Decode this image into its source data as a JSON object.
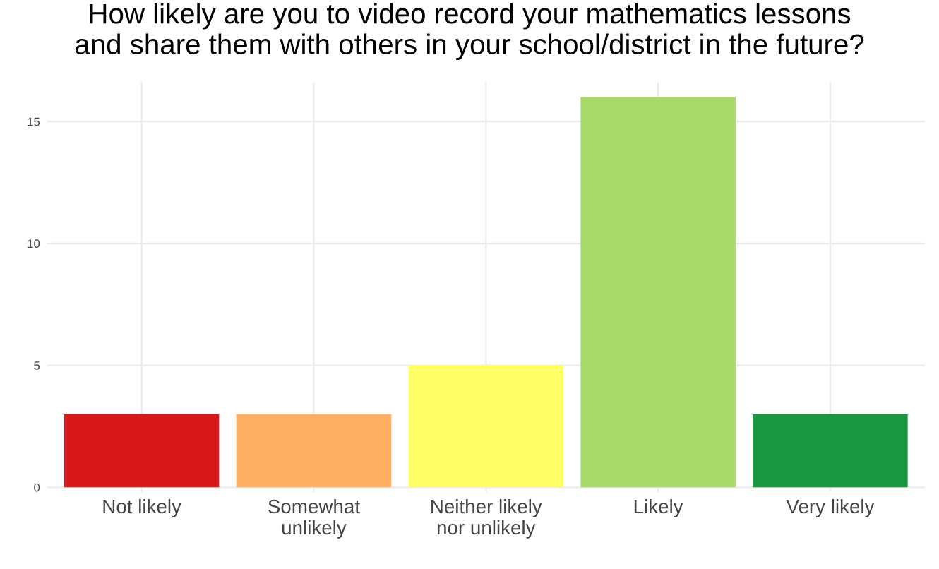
{
  "chart_data": {
    "type": "bar",
    "title": "How likely are you to video record your mathematics lessons\nand share them with others in your school/district in the future?",
    "categories": [
      "Not likely",
      "Somewhat\nunlikely",
      "Neither likely\nnor unlikely",
      "Likely",
      "Very likely"
    ],
    "values": [
      3,
      3,
      5,
      16,
      3
    ],
    "colors": [
      "#d7191c",
      "#fdae61",
      "#ffff66",
      "#a6d96a",
      "#1a9641"
    ],
    "ylim": [
      -0.2,
      16.6
    ],
    "yticks": [
      0,
      5,
      10,
      15
    ],
    "grid": true
  }
}
